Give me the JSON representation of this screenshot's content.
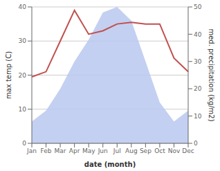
{
  "chart_data": {
    "type": "line",
    "xlabel": "date (month)",
    "ylabel": "max temp (C)",
    "y2label": "med. precipitation (kg/m2)",
    "categories": [
      "Jan",
      "Feb",
      "Mar",
      "Apr",
      "May",
      "Jun",
      "Jul",
      "Aug",
      "Sep",
      "Oct",
      "Nov",
      "Dec"
    ],
    "series": [
      {
        "type": "area",
        "axis": "y2",
        "color": "#b8c8ee",
        "values": [
          8.0,
          12.0,
          20.0,
          30.0,
          38.0,
          48.0,
          50.0,
          45.0,
          30.0,
          15.0,
          8.0,
          12.0
        ]
      },
      {
        "type": "line",
        "color": "#c0504d",
        "values": [
          19.5,
          21.0,
          30.0,
          39.0,
          32.0,
          33.0,
          35.0,
          35.5,
          35.0,
          35.0,
          25.0,
          21.0
        ]
      }
    ],
    "ylim": [
      0,
      40
    ],
    "yticks": [
      0,
      10,
      20,
      30,
      40
    ],
    "y2lim": [
      0,
      50
    ],
    "y2ticks": [
      0,
      10,
      20,
      30,
      40,
      50
    ],
    "grid": true
  }
}
